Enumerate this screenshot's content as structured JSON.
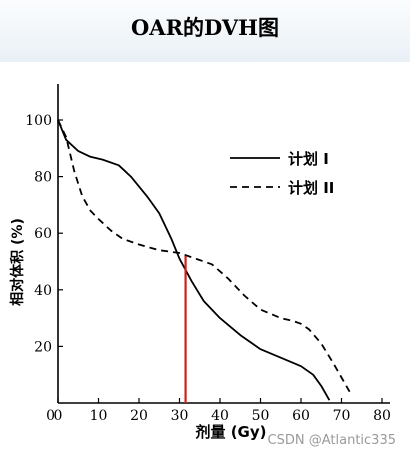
{
  "title": "OAR的DVH图",
  "watermark": "CSDN @Atlantic335",
  "colors": {
    "curve": "#000000",
    "marker": "#d0201c"
  },
  "chart_data": {
    "type": "line",
    "xlabel": "剂量 (Gy)",
    "ylabel": "相对体积 (%)",
    "xlim": [
      0,
      80
    ],
    "ylim": [
      0,
      100
    ],
    "xticks": [
      0,
      10,
      20,
      30,
      40,
      50,
      60,
      70,
      80
    ],
    "yticks": [
      20,
      40,
      60,
      80,
      100
    ],
    "grid": false,
    "legend_position": "top-right",
    "series": [
      {
        "name": "计划 I",
        "style": "solid",
        "x": [
          0,
          2,
          5,
          8,
          11,
          15,
          18,
          22,
          25,
          28,
          30,
          31.5,
          33,
          36,
          40,
          45,
          50,
          55,
          60,
          63,
          65,
          67
        ],
        "y": [
          100,
          93,
          89,
          87,
          86,
          84,
          80,
          73,
          67,
          58,
          51,
          47,
          43,
          36,
          30,
          24,
          19,
          16,
          13,
          10,
          6,
          1
        ]
      },
      {
        "name": "计划 II",
        "style": "dashed",
        "x": [
          0,
          2,
          4,
          6,
          8,
          10,
          13,
          16,
          20,
          25,
          30,
          34,
          38,
          42,
          46,
          50,
          55,
          58,
          60,
          62,
          65,
          68,
          70,
          72
        ],
        "y": [
          100,
          94,
          82,
          73,
          68,
          65,
          61,
          58,
          56,
          54,
          53,
          51,
          49,
          44,
          38,
          33,
          30,
          29,
          28,
          26,
          21,
          14,
          9,
          4
        ]
      }
    ],
    "annotations": [
      {
        "type": "vertical-line",
        "x": 31.5,
        "y_top": 52,
        "color": "#d0201c"
      }
    ]
  }
}
